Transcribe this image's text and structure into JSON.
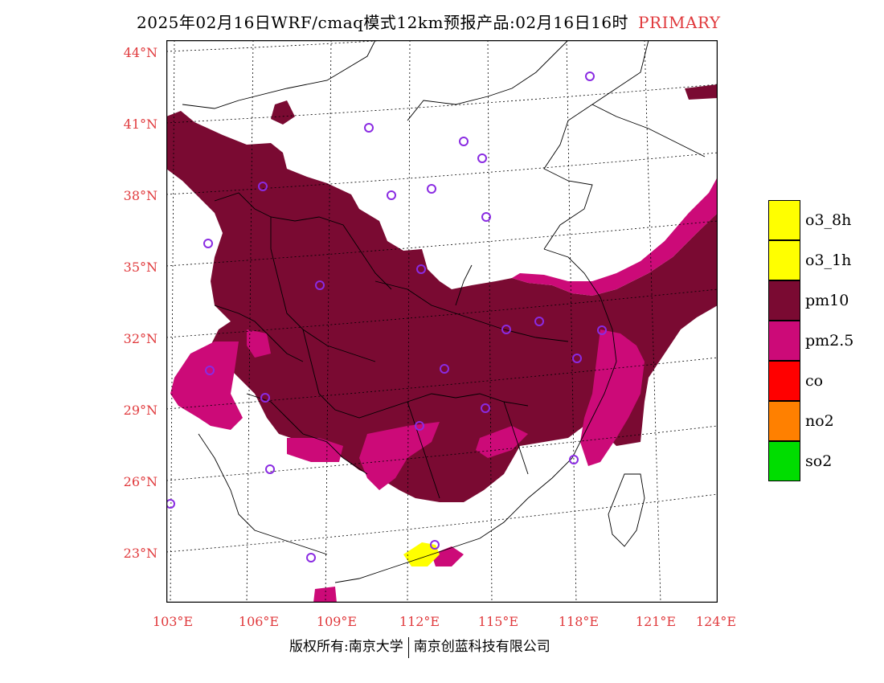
{
  "title": {
    "main": "2025年02月16日WRF/cmaq模式12km预报产品:02月16日16时",
    "pollutant_type": "PRIMARY"
  },
  "axes": {
    "lat_labels": [
      "44°N",
      "41°N",
      "38°N",
      "35°N",
      "32°N",
      "29°N",
      "26°N",
      "23°N"
    ],
    "lon_labels": [
      "103°E",
      "106°E",
      "109°E",
      "112°E",
      "115°E",
      "118°E",
      "121°E",
      "124°E"
    ]
  },
  "legend": [
    {
      "label": "o3_8h",
      "color": "#ffff00"
    },
    {
      "label": "o3_1h",
      "color": "#ffff00"
    },
    {
      "label": "pm10",
      "color": "#7a0a32"
    },
    {
      "label": "pm2.5",
      "color": "#cc0a78"
    },
    {
      "label": "co",
      "color": "#ff0000"
    },
    {
      "label": "no2",
      "color": "#ff8000"
    },
    {
      "label": "so2",
      "color": "#00dd00"
    }
  ],
  "colors": {
    "label_red": "#e0393c",
    "pm10": "#7a0a32",
    "pm25": "#cc0a78",
    "o3": "#ffff00",
    "station": "#8a2be2"
  },
  "footer": {
    "left": "版权所有:南京大学",
    "right": "南京创蓝科技有限公司"
  }
}
